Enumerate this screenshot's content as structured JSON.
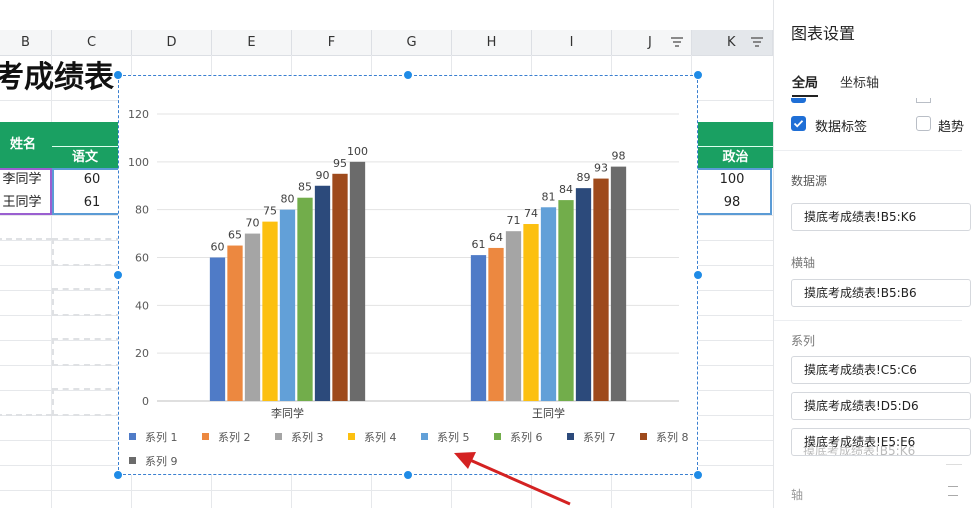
{
  "sheet": {
    "columns": [
      "B",
      "C",
      "D",
      "E",
      "F",
      "G",
      "H",
      "I",
      "J",
      "K"
    ],
    "selected_column": "K",
    "title_partial": "考成绩表",
    "header_name": "姓名",
    "header_chinese": "语文",
    "header_politics": "政治",
    "rows": [
      {
        "name": "李同学",
        "chinese": "60",
        "politics": "100"
      },
      {
        "name": "王同学",
        "chinese": "61",
        "politics": "98"
      }
    ]
  },
  "chart_data": {
    "type": "bar",
    "categories": [
      "李同学",
      "王同学"
    ],
    "series": [
      {
        "name": "系列 1",
        "color": "#4f7bc7",
        "values": [
          60,
          61
        ]
      },
      {
        "name": "系列 2",
        "color": "#ec8840",
        "values": [
          65,
          64
        ]
      },
      {
        "name": "系列 3",
        "color": "#a5a5a5",
        "values": [
          70,
          71
        ]
      },
      {
        "name": "系列 4",
        "color": "#fcc010",
        "values": [
          75,
          74
        ]
      },
      {
        "name": "系列 5",
        "color": "#62a0d8",
        "values": [
          80,
          81
        ]
      },
      {
        "name": "系列 6",
        "color": "#72ad4b",
        "values": [
          85,
          84
        ]
      },
      {
        "name": "系列 7",
        "color": "#2c4a7b",
        "values": [
          90,
          89
        ]
      },
      {
        "name": "系列 8",
        "color": "#9e4a1c",
        "values": [
          95,
          93
        ]
      },
      {
        "name": "系列 9",
        "color": "#6b6b6b",
        "values": [
          100,
          98
        ]
      }
    ],
    "yticks": [
      0,
      20,
      40,
      60,
      80,
      100,
      120
    ],
    "ylim": [
      0,
      120
    ],
    "grid": true,
    "data_labels": true,
    "legend_position": "bottom"
  },
  "panel": {
    "title": "图表设置",
    "tabs": [
      "全局",
      "坐标轴"
    ],
    "data_labels": "数据标签",
    "trend_partial": "趋势",
    "datasource_label": "数据源",
    "datasource_value": "摸底考成绩表!B5:K6",
    "xaxis_label": "横轴",
    "xaxis_value": "摸底考成绩表!B5:B6",
    "series_label": "系列",
    "series_values": [
      "摸底考成绩表!C5:C6",
      "摸底考成绩表!D5:D6",
      "摸底考成绩表!E5:E6"
    ],
    "ghost_text": "摸底考成绩表!B5:K6",
    "axis_partial": "轴"
  },
  "colors": {
    "header_green": "#1aa062",
    "accent_blue": "#1f6fd6",
    "arrow_red": "#d42222"
  }
}
